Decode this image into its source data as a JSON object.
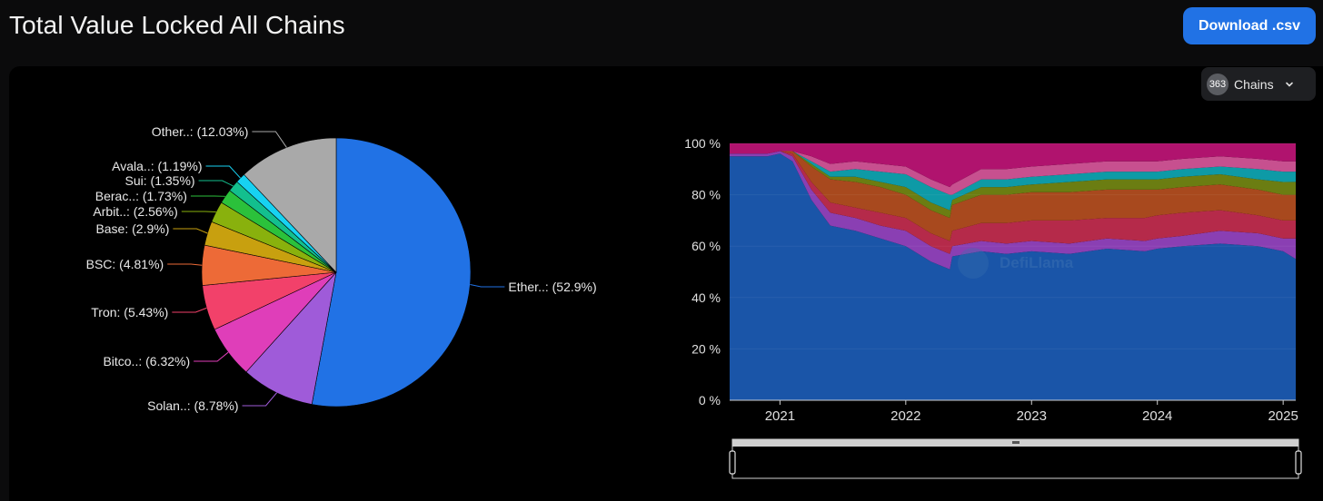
{
  "header": {
    "title": "Total Value Locked All Chains",
    "download_label": "Download .csv"
  },
  "chains_selector": {
    "count": "363",
    "label": "Chains"
  },
  "watermark": "DefiLlama",
  "chart_data": [
    {
      "type": "pie",
      "slices": [
        {
          "label": "Ether..: (52.9%)",
          "value": 52.9,
          "color": "#2172e5"
        },
        {
          "label": "Solan..: (8.78%)",
          "value": 8.78,
          "color": "#9f5bd9"
        },
        {
          "label": "Bitco..: (6.32%)",
          "value": 6.32,
          "color": "#df3eb9"
        },
        {
          "label": "Tron: (5.43%)",
          "value": 5.43,
          "color": "#f2416a"
        },
        {
          "label": "BSC: (4.81%)",
          "value": 4.81,
          "color": "#ed6a37"
        },
        {
          "label": "Base: (2.9%)",
          "value": 2.9,
          "color": "#c8a00f"
        },
        {
          "label": "Arbit..: (2.56%)",
          "value": 2.56,
          "color": "#89b10d"
        },
        {
          "label": "Berac..: (1.73%)",
          "value": 1.73,
          "color": "#2bc13b"
        },
        {
          "label": "Sui: (1.35%)",
          "value": 1.35,
          "color": "#13bf8e"
        },
        {
          "label": "Avala..: (1.19%)",
          "value": 1.19,
          "color": "#17d2f2"
        },
        {
          "label": "Other..: (12.03%)",
          "value": 12.03,
          "color": "#a9a9a9"
        }
      ]
    },
    {
      "type": "area",
      "stacking": "percent",
      "y_ticks": [
        "0 %",
        "20 %",
        "40 %",
        "60 %",
        "80 %",
        "100 %"
      ],
      "x_ticks": [
        "2021",
        "2022",
        "2023",
        "2024",
        "2025"
      ],
      "ylim": [
        0,
        100
      ],
      "x": [
        2020.6,
        2020.9,
        2021.0,
        2021.1,
        2021.25,
        2021.4,
        2021.6,
        2021.8,
        2022.0,
        2022.2,
        2022.35,
        2022.37,
        2022.6,
        2022.8,
        2023.0,
        2023.3,
        2023.6,
        2023.9,
        2024.0,
        2024.2,
        2024.5,
        2024.8,
        2025.0,
        2025.1
      ],
      "series": [
        {
          "values": [
            95,
            95,
            96,
            93,
            78,
            68,
            66,
            63,
            60,
            54,
            51,
            56,
            58,
            57,
            58,
            57,
            59,
            58,
            59,
            60,
            61,
            60,
            58,
            55
          ],
          "color": "#1a55a8"
        },
        {
          "values": [
            1,
            1,
            1,
            2,
            4,
            5,
            5,
            5,
            6,
            6,
            6,
            4,
            4,
            4,
            4,
            4,
            4,
            4,
            4,
            4,
            5,
            5,
            5,
            8
          ],
          "color": "#8a3fb3"
        },
        {
          "values": [
            0,
            0,
            0,
            1,
            3,
            4,
            4,
            5,
            5,
            5,
            5,
            6,
            7,
            8,
            8,
            9,
            8,
            9,
            9,
            9,
            8,
            7,
            7,
            7
          ],
          "color": "#b52a4a"
        },
        {
          "values": [
            0,
            0,
            0,
            1,
            6,
            9,
            10,
            10,
            9,
            9,
            9,
            10,
            11,
            11,
            11,
            11,
            11,
            11,
            10,
            10,
            10,
            10,
            10,
            10
          ],
          "color": "#a8491e"
        },
        {
          "values": [
            0,
            0,
            0,
            0,
            1,
            1,
            2,
            2,
            3,
            3,
            3,
            2,
            3,
            3,
            3,
            4,
            4,
            4,
            4,
            4,
            4,
            4,
            5,
            5
          ],
          "color": "#6b7d12"
        },
        {
          "values": [
            0,
            0,
            0,
            0,
            1,
            2,
            3,
            4,
            5,
            6,
            6,
            2,
            3,
            3,
            3,
            3,
            3,
            3,
            3,
            3,
            3,
            4,
            4,
            4
          ],
          "color": "#0e9aa6"
        },
        {
          "values": [
            0,
            0,
            0,
            0,
            2,
            3,
            3,
            3,
            3,
            3,
            3,
            4,
            4,
            4,
            4,
            4,
            4,
            4,
            4,
            4,
            4,
            4,
            4,
            4
          ],
          "color": "#c7508f"
        },
        {
          "values": [
            4,
            4,
            3,
            3,
            5,
            8,
            7,
            8,
            9,
            14,
            17,
            16,
            10,
            10,
            9,
            8,
            7,
            7,
            7,
            6,
            5,
            6,
            7,
            7
          ],
          "color": "#b0136e"
        }
      ]
    }
  ]
}
